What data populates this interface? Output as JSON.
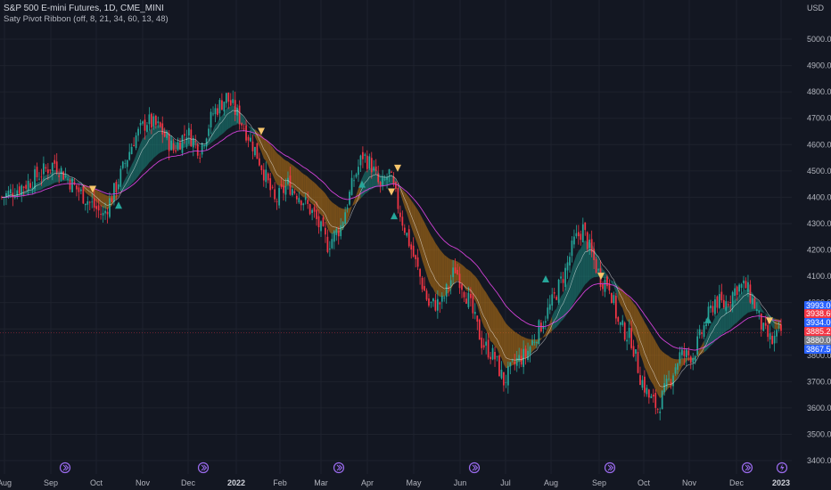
{
  "header": {
    "symbol_title": "S&P 500 E-mini Futures, 1D, CME_MINI",
    "indicator_label": "Saty Pivot Ribbon (off, 8, 21, 34, 60, 13, 48)"
  },
  "price_axis": {
    "currency": "USD",
    "ticks": [
      "5000.00",
      "4900.00",
      "4800.00",
      "4700.00",
      "4600.00",
      "4500.00",
      "4400.00",
      "4300.00",
      "4200.00",
      "4100.00",
      "4000.00",
      "3900.00",
      "3800.00",
      "3700.00",
      "3600.00",
      "3500.00",
      "3400.00"
    ]
  },
  "price_tags": [
    {
      "value": "3993.00",
      "color": "#2962ff"
    },
    {
      "value": "3938.60",
      "color": "#f23645"
    },
    {
      "value": "3934.00",
      "color": "#2962ff"
    },
    {
      "value": "3885.25",
      "color": "#f23645"
    },
    {
      "value": "3880.00",
      "color": "#787b86"
    },
    {
      "value": "3867.50",
      "color": "#2962ff"
    }
  ],
  "time_axis": {
    "labels": [
      "Aug",
      "Sep",
      "Oct",
      "Nov",
      "Dec",
      "2022",
      "Feb",
      "Mar",
      "Apr",
      "May",
      "Jun",
      "Jul",
      "Aug",
      "Sep",
      "Oct",
      "Nov",
      "Dec",
      "2023"
    ]
  },
  "colors": {
    "background": "#131722",
    "up_candle": "#26a69a",
    "down_candle": "#f23645",
    "bull_ribbon": "#1b8a80",
    "bear_ribbon": "#c47a12",
    "slow_ma": "#d041d6",
    "fast_ma": "#ffffff",
    "up_marker": "#26a69a",
    "down_marker": "#f6c56b",
    "event_icon": "#9c6cf0"
  },
  "event_icons": [
    "calendar-event-icon",
    "calendar-event-icon",
    "calendar-event-icon",
    "calendar-event-icon",
    "calendar-event-icon",
    "calendar-event-icon",
    "calendar-event-icon",
    "lightning-icon"
  ]
}
